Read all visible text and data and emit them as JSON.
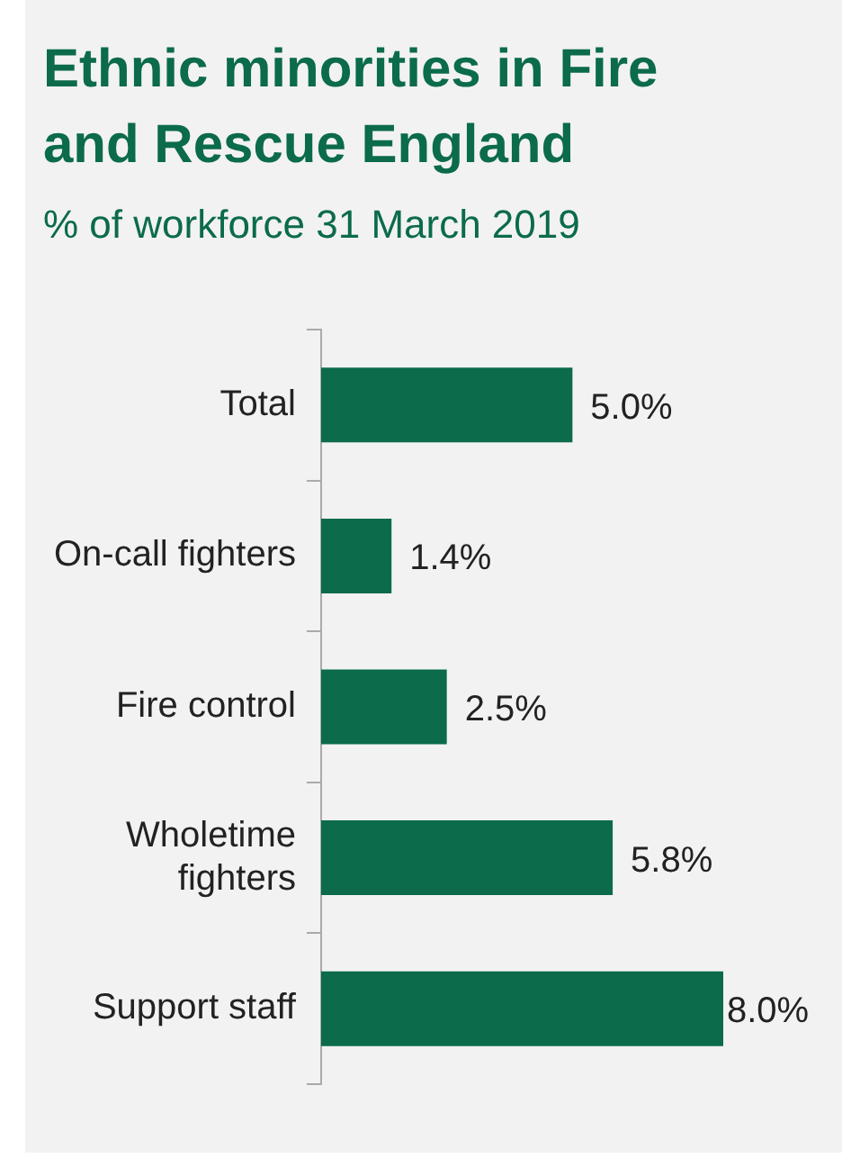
{
  "chart_data": {
    "type": "bar",
    "orientation": "horizontal",
    "title": "Ethnic minorities in Fire and Rescue England",
    "subtitle": "% of workforce 31 March 2019",
    "categories": [
      "Total",
      "On-call fighters",
      "Fire control",
      "Wholetime fighters",
      "Support staff"
    ],
    "values": [
      5.0,
      1.4,
      2.5,
      5.8,
      8.0
    ],
    "value_labels": [
      "5.0%",
      "1.4%",
      "2.5%",
      "5.8%",
      "8.0%"
    ],
    "color": "#0b6b4a",
    "legend": false
  }
}
